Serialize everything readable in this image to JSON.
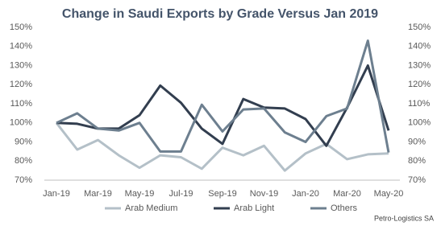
{
  "chart_data": {
    "type": "line",
    "title": "Change in Saudi Exports by Grade Versus Jan 2019",
    "source": "Petro-Logistics SA",
    "categories": [
      "Jan-19",
      null,
      "Mar-19",
      null,
      "May-19",
      null,
      "Jul-19",
      null,
      "Sep-19",
      null,
      "Nov-19",
      null,
      "Jan-20",
      null,
      "Mar-20",
      null,
      "May-20"
    ],
    "series": [
      {
        "name": "Arab Medium",
        "color": "#b4c0c8",
        "values": [
          100,
          86,
          91,
          83,
          76.5,
          83,
          82,
          76,
          87,
          83,
          88,
          75,
          84,
          89,
          81,
          83.5,
          84
        ]
      },
      {
        "name": "Arab Light",
        "color": "#323e4f",
        "values": [
          100,
          99.5,
          97,
          97,
          104,
          119.5,
          110.5,
          97,
          89,
          112.5,
          108,
          107.5,
          102,
          88,
          108,
          130,
          96
        ]
      },
      {
        "name": "Others",
        "color": "#6d7f8f",
        "values": [
          100,
          105,
          97,
          96,
          100,
          85,
          85,
          109.5,
          95.5,
          107,
          107.5,
          95,
          90,
          103.5,
          107.5,
          143,
          84.5
        ]
      }
    ],
    "ylim": [
      70,
      150
    ],
    "yticks": [
      {
        "value": 70,
        "label": "70%"
      },
      {
        "value": 80,
        "label": "80%"
      },
      {
        "value": 90,
        "label": "90%"
      },
      {
        "value": 100,
        "label": "100%"
      },
      {
        "value": 110,
        "label": "110%"
      },
      {
        "value": 120,
        "label": "120%"
      },
      {
        "value": 130,
        "label": "130%"
      },
      {
        "value": 140,
        "label": "140%"
      },
      {
        "value": 150,
        "label": "150%"
      }
    ],
    "y2lim": [
      70,
      150
    ],
    "y2ticks": [
      {
        "value": 70,
        "label": "70%"
      },
      {
        "value": 80,
        "label": "80%"
      },
      {
        "value": 90,
        "label": "90%"
      },
      {
        "value": 100,
        "label": "100%"
      },
      {
        "value": 110,
        "label": "110%"
      },
      {
        "value": 120,
        "label": "120%"
      },
      {
        "value": 130,
        "label": "130%"
      },
      {
        "value": 140,
        "label": "140%"
      },
      {
        "value": 150,
        "label": "150%"
      }
    ],
    "grid": false,
    "legend": "bottom"
  }
}
